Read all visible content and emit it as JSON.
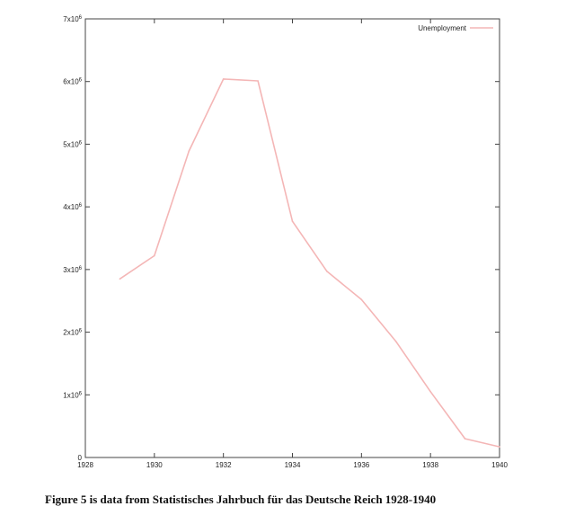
{
  "caption": "Figure 5 is data from Statistisches Jahrbuch für das Deutsche Reich 1928-1940",
  "chart_data": {
    "type": "line",
    "title": "",
    "xlabel": "",
    "ylabel": "",
    "xlim": [
      1928,
      1940
    ],
    "ylim": [
      0,
      7000000
    ],
    "x_ticks": [
      1928,
      1930,
      1932,
      1934,
      1936,
      1938,
      1940
    ],
    "y_ticks": [
      0,
      1000000,
      2000000,
      3000000,
      4000000,
      5000000,
      6000000,
      7000000
    ],
    "y_tick_labels": [
      {
        "base": "0",
        "exp": ""
      },
      {
        "base": "1x10",
        "exp": "6"
      },
      {
        "base": "2x10",
        "exp": "6"
      },
      {
        "base": "3x10",
        "exp": "6"
      },
      {
        "base": "4x10",
        "exp": "6"
      },
      {
        "base": "5x10",
        "exp": "6"
      },
      {
        "base": "6x10",
        "exp": "6"
      },
      {
        "base": "7x10",
        "exp": "6"
      }
    ],
    "grid": false,
    "legend_position": "top-right",
    "series": [
      {
        "name": "Unemployment",
        "color": "#f4b6b6",
        "x": [
          1929,
          1930,
          1931,
          1932,
          1933,
          1934,
          1935,
          1936,
          1937,
          1938,
          1939,
          1940
        ],
        "y": [
          2850000,
          3220000,
          4890000,
          6040000,
          6010000,
          3770000,
          2970000,
          2520000,
          1850000,
          1050000,
          300000,
          170000
        ]
      }
    ]
  }
}
